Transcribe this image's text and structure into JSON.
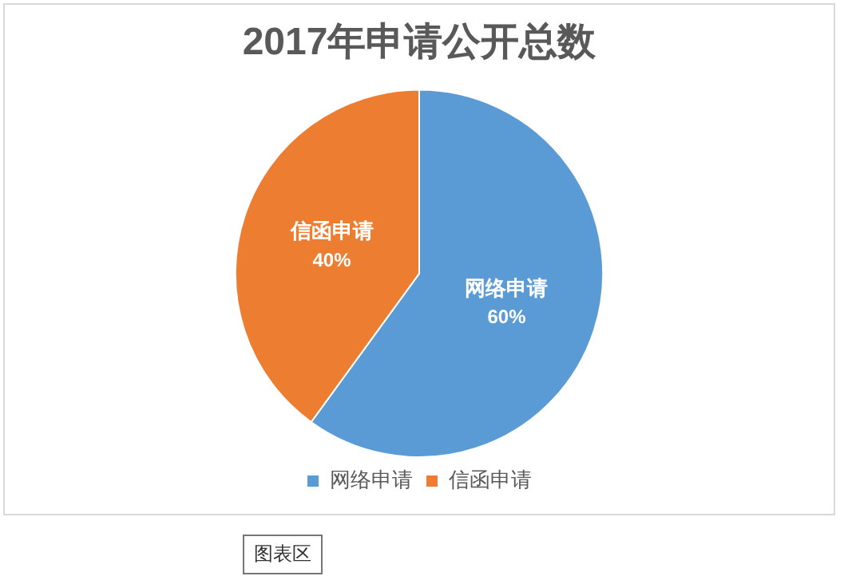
{
  "chart_data": {
    "type": "pie",
    "title": "2017年申请公开总数",
    "categories": [
      "网络申请",
      "信函申请"
    ],
    "values": [
      60,
      40
    ],
    "value_labels": [
      "60%",
      "40%"
    ],
    "colors": [
      "#5b9bd5",
      "#ed7d31"
    ],
    "legend": "bottom",
    "annotations": [
      "图表区"
    ]
  }
}
